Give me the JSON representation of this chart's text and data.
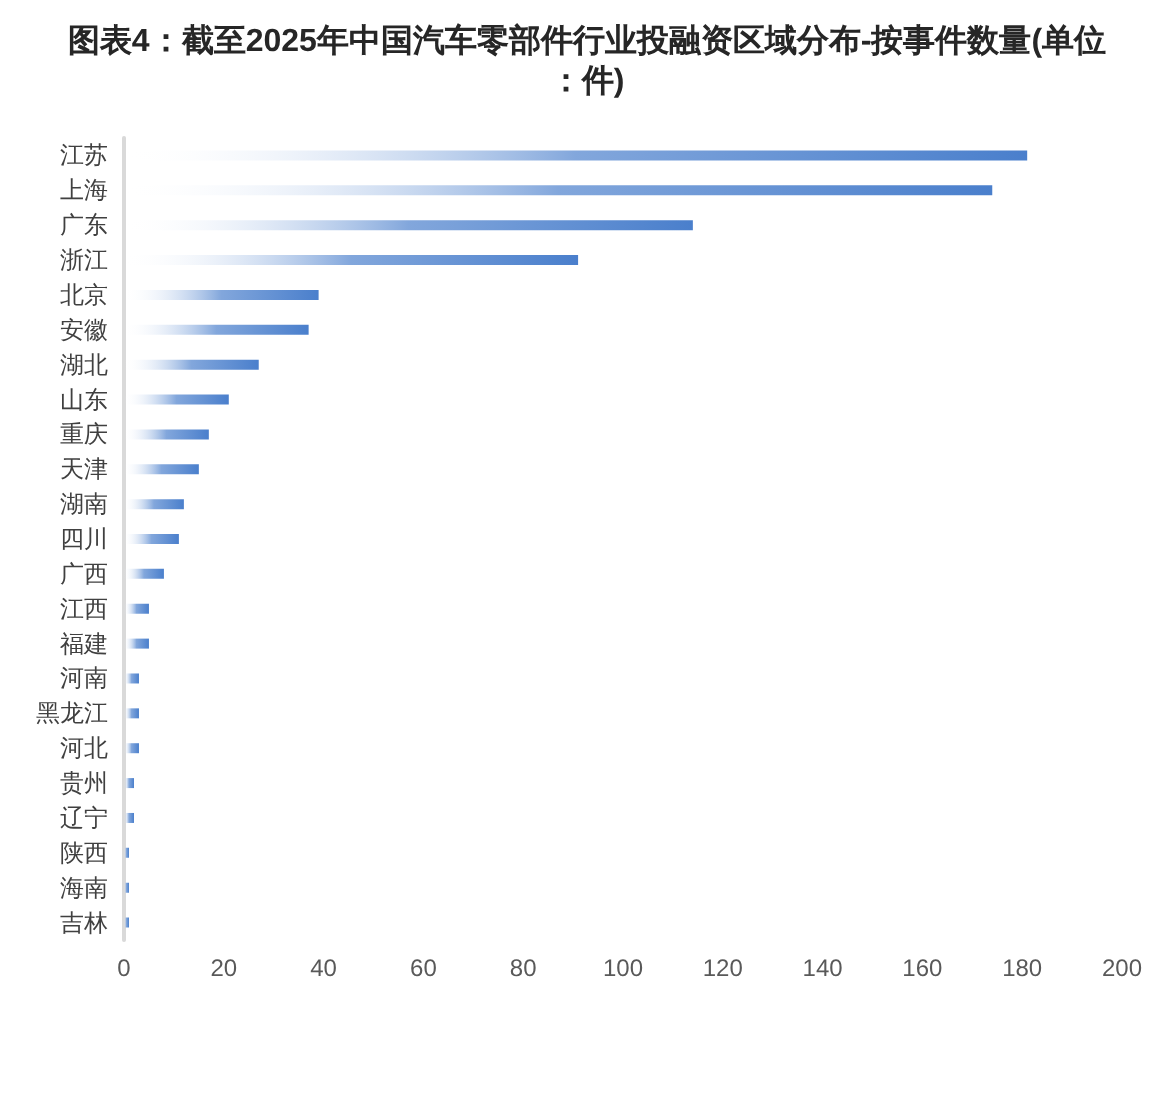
{
  "chart_data": {
    "type": "bar",
    "orientation": "horizontal",
    "title": "图表4：截至2025年中国汽车零部件行业投融资区域分布-按事件数量(单位：件)",
    "categories": [
      "江苏",
      "上海",
      "广东",
      "浙江",
      "北京",
      "安徽",
      "湖北",
      "山东",
      "重庆",
      "天津",
      "湖南",
      "四川",
      "广西",
      "江西",
      "福建",
      "河南",
      "黑龙江",
      "河北",
      "贵州",
      "辽宁",
      "陕西",
      "海南",
      "吉林"
    ],
    "values": [
      181,
      174,
      114,
      91,
      39,
      37,
      27,
      21,
      17,
      15,
      12,
      11,
      8,
      5,
      5,
      3,
      3,
      3,
      2,
      2,
      1,
      1,
      1
    ],
    "color": "#4a7fcc",
    "xlim": [
      0,
      200
    ],
    "xticks": [
      0,
      20,
      40,
      60,
      80,
      100,
      120,
      140,
      160,
      180,
      200
    ],
    "grid": false
  }
}
